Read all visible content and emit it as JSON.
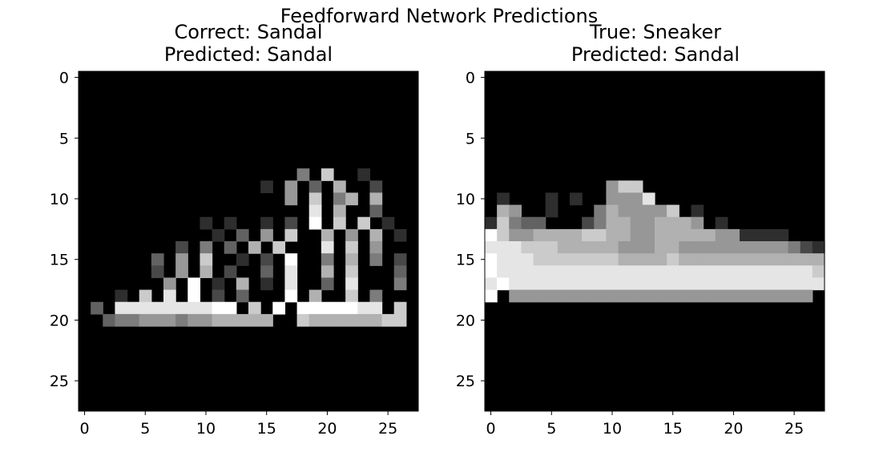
{
  "figure": {
    "suptitle": "Feedforward Network Predictions"
  },
  "chart_data": [
    {
      "type": "heatmap",
      "colormap": "gray",
      "value_range": [
        0,
        1
      ],
      "title_lines": [
        "Correct: Sandal",
        "Predicted: Sandal"
      ],
      "xticks": [
        0,
        5,
        10,
        15,
        20,
        25
      ],
      "yticks": [
        0,
        5,
        10,
        15,
        20,
        25
      ],
      "xlim": [
        -0.5,
        27.5
      ],
      "ylim": [
        27.5,
        -0.5
      ],
      "grid_size": [
        28,
        28
      ],
      "grid_rows": [
        "............................",
        "............................",
        "............................",
        "............................",
        "............................",
        "............................",
        "............................",
        "............................",
        "..................4.7..1....",
        "...............1.5.3.6..2...",
        ".................5.7.46.6...",
        "...................8.6..3...",
        "..........1.1..1.2.9.7.7.1..",
        "...........1.3.5.7..6.5.6.1.",
        "........2.4.3.6.7...8.7.5...",
        "......3.5.7..1.2.9..4.6.4.2.",
        "......2.5.6.2..3.8..6.7...3.",
        ".......5.9.1.6.1.8..3.8...4.",
        "...1.7.8.9.2.3...9.6..7.4...",
        ".3.8888888899.7.9.9999988.7.",
        "..34455545566666..766666677.",
        "............................",
        "............................",
        "............................",
        "............................",
        "............................",
        "............................",
        "............................"
      ]
    },
    {
      "type": "heatmap",
      "colormap": "gray",
      "value_range": [
        0,
        1
      ],
      "title_lines": [
        "True: Sneaker",
        "Predicted: Sandal"
      ],
      "xticks": [
        0,
        5,
        10,
        15,
        20,
        25
      ],
      "yticks": [
        0,
        5,
        10,
        15,
        20,
        25
      ],
      "xlim": [
        -0.5,
        27.5
      ],
      "ylim": [
        27.5,
        -0.5
      ],
      "grid_size": [
        28,
        28
      ],
      "grid_rows": [
        "............................",
        "............................",
        "............................",
        "............................",
        "............................",
        "............................",
        "............................",
        "............................",
        "............................",
        "..........577...............",
        ".1...1.1..5558..............",
        ".65..1...4655557.1..........",
        "17433...2466556665.1........",
        "9755666677665566666551111...",
        "8887776666655566555555555421",
        "9888777777766667666666666666",
        "9888888888888888888888888887",
        "8988888888888888888888888888",
        "9.5555555555555555555555555.",
        "............................",
        "............................",
        "............................",
        "............................",
        "............................",
        "............................",
        "............................",
        "............................",
        "............................"
      ]
    }
  ]
}
